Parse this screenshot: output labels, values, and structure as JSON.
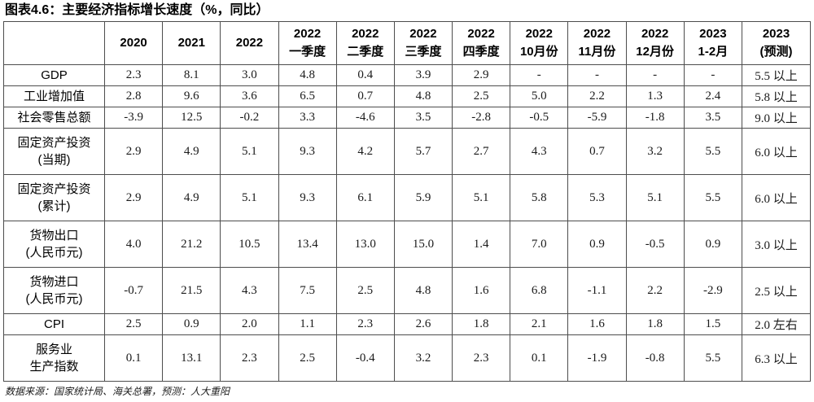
{
  "colors": {
    "background": "#ffffff",
    "text": "#000000",
    "table_border": "#4d4d4d"
  },
  "chart_data": {
    "type": "table",
    "title": "图表4.6：主要经济指标增长速度（%，同比）",
    "source_note": "数据来源：国家统计局、海关总署，预测：人大重阳",
    "column_headers": [
      [
        ""
      ],
      [
        "2020"
      ],
      [
        "2021"
      ],
      [
        "2022"
      ],
      [
        "2022",
        "一季度"
      ],
      [
        "2022",
        "二季度"
      ],
      [
        "2022",
        "三季度"
      ],
      [
        "2022",
        "四季度"
      ],
      [
        "2022",
        "10月份"
      ],
      [
        "2022",
        "11月份"
      ],
      [
        "2022",
        "12月份"
      ],
      [
        "2023",
        "1-2月"
      ],
      [
        "2023",
        "(预测)"
      ]
    ],
    "rows": [
      {
        "label": [
          "GDP"
        ],
        "values": [
          "2.3",
          "8.1",
          "3.0",
          "4.8",
          "0.4",
          "3.9",
          "2.9",
          "-",
          "-",
          "-",
          "-",
          "5.5 以上"
        ]
      },
      {
        "label": [
          "工业增加值"
        ],
        "values": [
          "2.8",
          "9.6",
          "3.6",
          "6.5",
          "0.7",
          "4.8",
          "2.5",
          "5.0",
          "2.2",
          "1.3",
          "2.4",
          "5.8 以上"
        ]
      },
      {
        "label": [
          "社会零售总额"
        ],
        "values": [
          "-3.9",
          "12.5",
          "-0.2",
          "3.3",
          "-4.6",
          "3.5",
          "-2.8",
          "-0.5",
          "-5.9",
          "-1.8",
          "3.5",
          "9.0 以上"
        ]
      },
      {
        "label": [
          "固定资产投资",
          "(当期)"
        ],
        "values": [
          "2.9",
          "4.9",
          "5.1",
          "9.3",
          "4.2",
          "5.7",
          "2.7",
          "4.3",
          "0.7",
          "3.2",
          "5.5",
          "6.0 以上"
        ]
      },
      {
        "label": [
          "固定资产投资",
          "(累计)"
        ],
        "values": [
          "2.9",
          "4.9",
          "5.1",
          "9.3",
          "6.1",
          "5.9",
          "5.1",
          "5.8",
          "5.3",
          "5.1",
          "5.5",
          "6.0 以上"
        ]
      },
      {
        "label": [
          "货物出口",
          "(人民币元)"
        ],
        "values": [
          "4.0",
          "21.2",
          "10.5",
          "13.4",
          "13.0",
          "15.0",
          "1.4",
          "7.0",
          "0.9",
          "-0.5",
          "0.9",
          "3.0 以上"
        ]
      },
      {
        "label": [
          "货物进口",
          "(人民币元)"
        ],
        "values": [
          "-0.7",
          "21.5",
          "4.3",
          "7.5",
          "2.5",
          "4.8",
          "1.6",
          "6.8",
          "-1.1",
          "2.2",
          "-2.9",
          "2.5 以上"
        ]
      },
      {
        "label": [
          "CPI"
        ],
        "values": [
          "2.5",
          "0.9",
          "2.0",
          "1.1",
          "2.3",
          "2.6",
          "1.8",
          "2.1",
          "1.6",
          "1.8",
          "1.5",
          "2.0 左右"
        ]
      },
      {
        "label": [
          "服务业",
          "生产指数"
        ],
        "values": [
          "0.1",
          "13.1",
          "2.3",
          "2.5",
          "-0.4",
          "3.2",
          "2.3",
          "0.1",
          "-1.9",
          "-0.8",
          "5.5",
          "6.3 以上"
        ]
      }
    ]
  }
}
